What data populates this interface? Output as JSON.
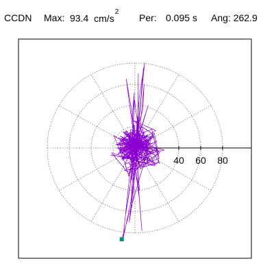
{
  "header": {
    "station": "CCDN",
    "max_label": "Max:",
    "max_value": "93.4",
    "max_unit": "cm/s",
    "max_unit_exp": "2",
    "per_label": "Per:",
    "per_value": "0.095 s",
    "ang_label": "Ang: 262.9"
  },
  "colors": {
    "trace": "#8b00d0",
    "marker": "#00957a",
    "grid": "#707070",
    "axis": "#000000"
  },
  "chart_data": {
    "type": "polar-particle-motion",
    "radial_unit": "cm/s2",
    "radial_ticks": [
      0,
      20,
      40,
      60,
      80
    ],
    "radial_tick_labels": [
      "0",
      "40",
      "60",
      "80"
    ],
    "radial_max": 93.4,
    "angular_divisions": 12,
    "gridline_style": "dotted",
    "peak": {
      "value": 93.4,
      "angle_deg": 262.9
    },
    "motion_extent": {
      "north": 80,
      "south": -86,
      "east": 14,
      "west": -19
    },
    "end_marker": {
      "x": -12,
      "y": -86
    }
  }
}
